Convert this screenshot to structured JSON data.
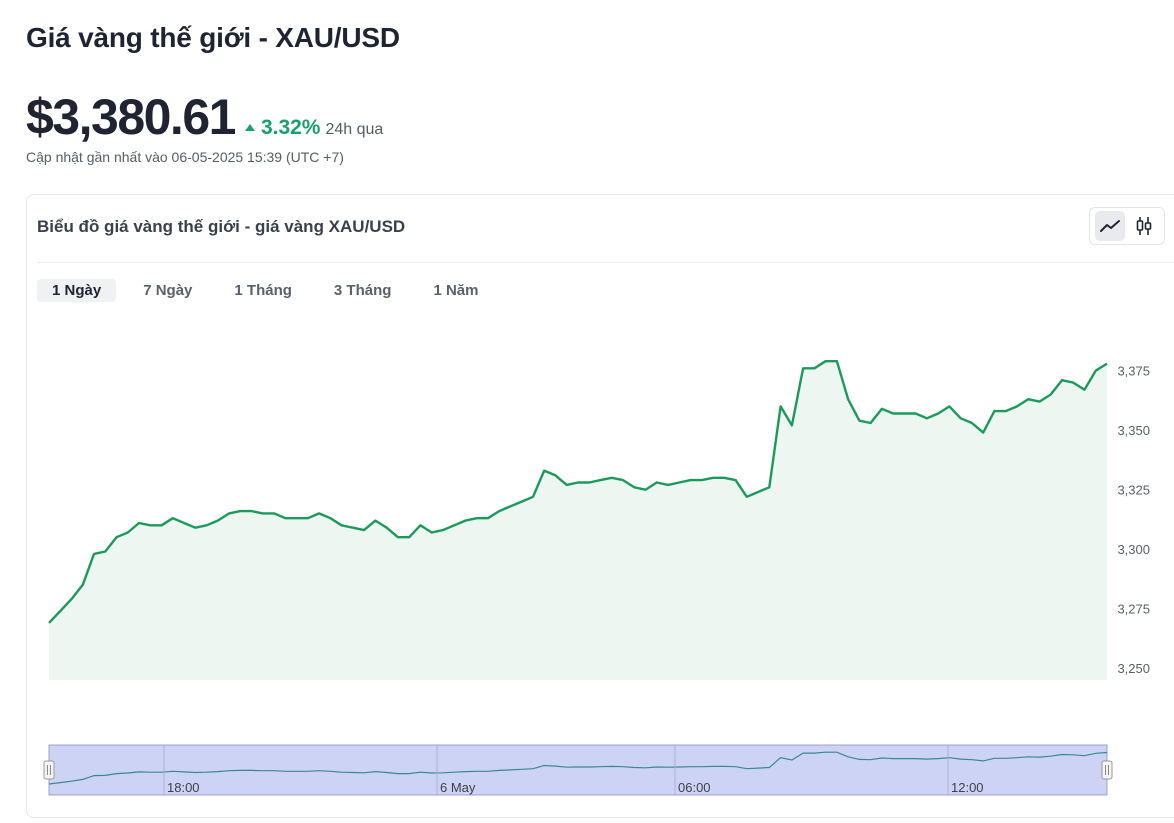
{
  "header": {
    "title": "Giá vàng thế giới - XAU/USD",
    "price": "$3,380.61",
    "change_pct": "3.32%",
    "change_period": "24h qua",
    "updated": "Cập nhật gần nhất vào 06-05-2025 15:39 (UTC +7)"
  },
  "card": {
    "title": "Biểu đồ giá vàng thế giới - giá vàng XAU/USD",
    "tabs": [
      {
        "label": "1 Ngày",
        "active": true
      },
      {
        "label": "7 Ngày",
        "active": false
      },
      {
        "label": "1 Tháng",
        "active": false
      },
      {
        "label": "3 Tháng",
        "active": false
      },
      {
        "label": "1 Năm",
        "active": false
      }
    ],
    "chart_modes": [
      "line",
      "candlestick"
    ]
  },
  "colors": {
    "accent_green": "#1aa06d",
    "line": "#1c9a5c",
    "area_fill": "#edf6f1",
    "navigator_fill": "#cdd3f5",
    "navigator_line": "#3a8a8a"
  },
  "chart_data": {
    "type": "area",
    "y_ticks": [
      "3,250",
      "3,275",
      "3,300",
      "3,325",
      "3,350",
      "3,375"
    ],
    "ylim": [
      3245,
      3390
    ],
    "grid": false,
    "navigator_ticks": [
      "18:00",
      "6 May",
      "06:00",
      "12:00"
    ],
    "series": [
      {
        "values": [
          3269,
          3274,
          3279,
          3285,
          3298,
          3299,
          3305,
          3307,
          3311,
          3310,
          3310,
          3313,
          3311,
          3309,
          3310,
          3312,
          3315,
          3316,
          3316,
          3315,
          3315,
          3313,
          3313,
          3313,
          3315,
          3313,
          3310,
          3309,
          3308,
          3312,
          3309,
          3305,
          3305,
          3310,
          3307,
          3308,
          3310,
          3312,
          3313,
          3313,
          3316,
          3318,
          3320,
          3322,
          3333,
          3331,
          3327,
          3328,
          3328,
          3329,
          3330,
          3329,
          3326,
          3325,
          3328,
          3327,
          3328,
          3329,
          3329,
          3330,
          3330,
          3329,
          3322,
          3324,
          3326,
          3360,
          3352,
          3376,
          3376,
          3379,
          3379,
          3363,
          3354,
          3353,
          3359,
          3357,
          3357,
          3357,
          3355,
          3357,
          3360,
          3355,
          3353,
          3349,
          3358,
          3358,
          3360,
          3363,
          3362,
          3365,
          3371,
          3370,
          3367,
          3375,
          3378
        ]
      }
    ]
  }
}
